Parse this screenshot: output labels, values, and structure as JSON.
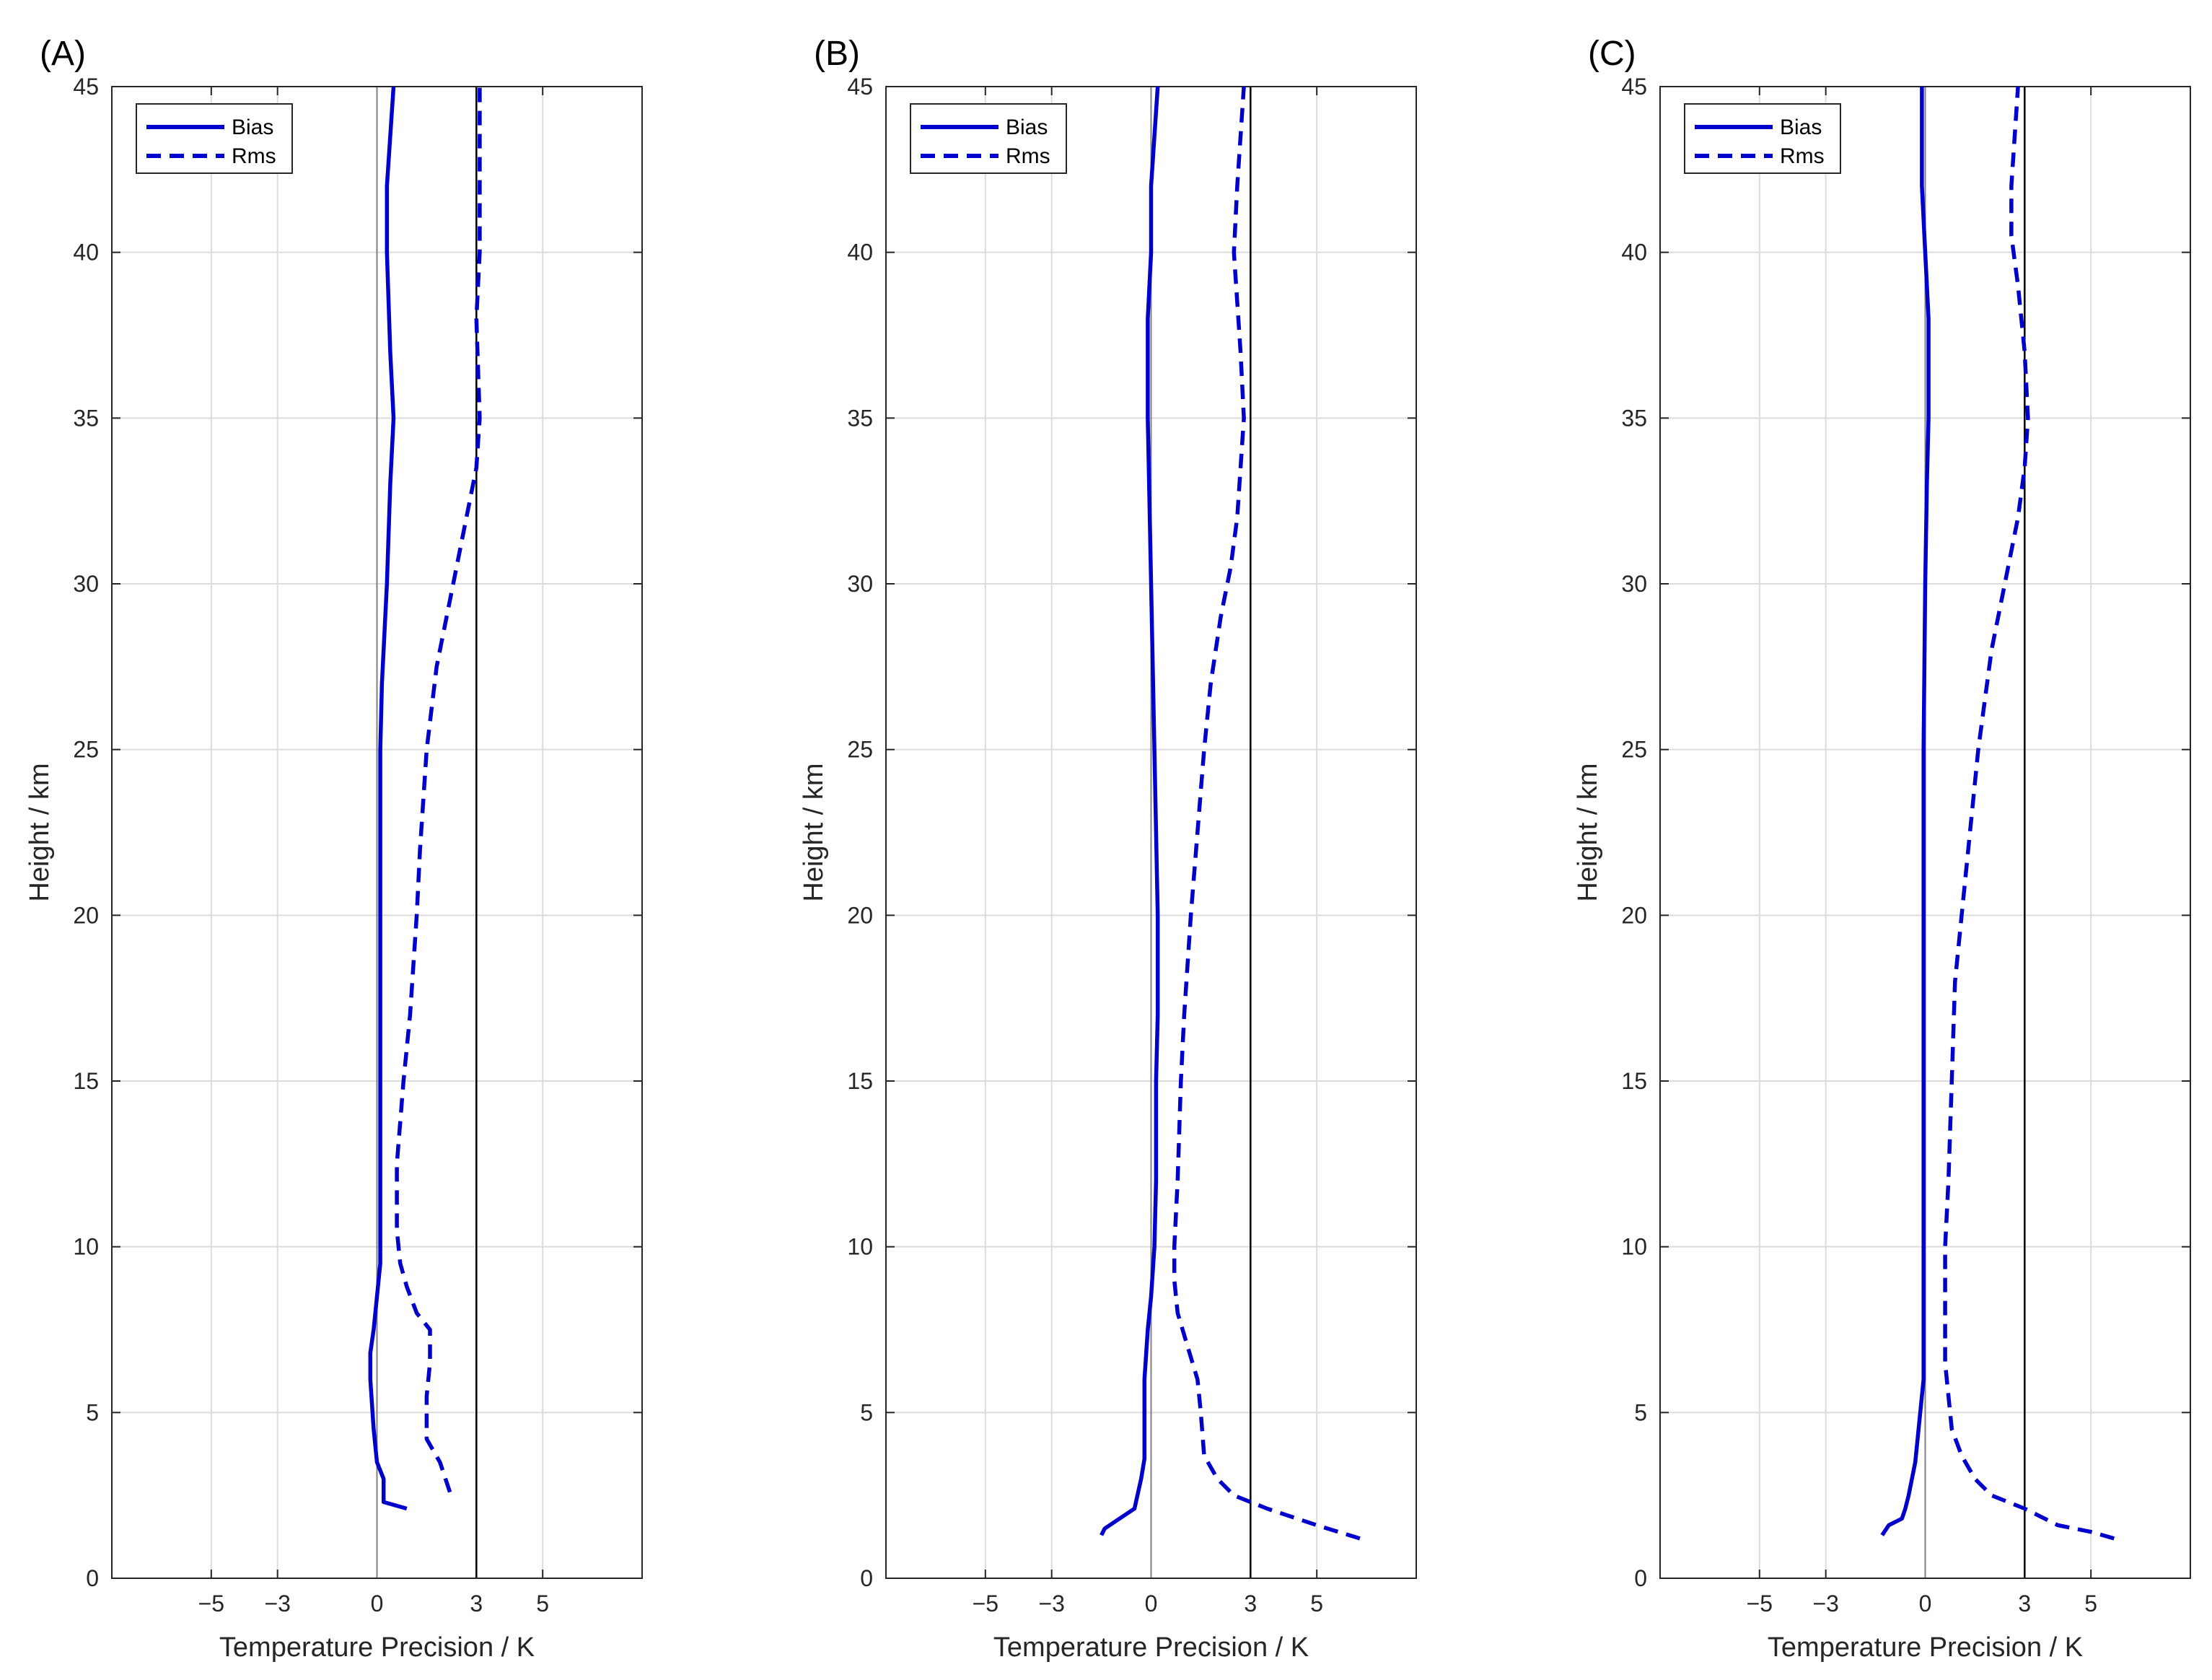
{
  "chart_data": [
    {
      "type": "line",
      "panel_label": "(A)",
      "xlabel": "Temperature Precision / K",
      "ylabel": "Height / km",
      "xlim": [
        -8,
        8
      ],
      "ylim": [
        0,
        45
      ],
      "xticks": [
        -5,
        -3,
        0,
        3,
        5
      ],
      "yticks": [
        0,
        5,
        10,
        15,
        20,
        25,
        30,
        35,
        40,
        45
      ],
      "grid": true,
      "reference_lines_x": [
        0,
        3
      ],
      "legend": {
        "location": "top-left",
        "entries": [
          "Bias",
          "Rms"
        ]
      },
      "series": [
        {
          "name": "Bias",
          "style": "solid",
          "color": "#0000cd",
          "points": [
            [
              0.9,
              2.1
            ],
            [
              0.2,
              2.3
            ],
            [
              0.2,
              3.0
            ],
            [
              0.0,
              3.5
            ],
            [
              -0.1,
              4.5
            ],
            [
              -0.2,
              6.0
            ],
            [
              -0.2,
              6.8
            ],
            [
              -0.1,
              7.5
            ],
            [
              0.0,
              8.5
            ],
            [
              0.1,
              9.5
            ],
            [
              0.1,
              12.0
            ],
            [
              0.1,
              16.0
            ],
            [
              0.1,
              20.0
            ],
            [
              0.1,
              25.0
            ],
            [
              0.15,
              27.0
            ],
            [
              0.3,
              30.0
            ],
            [
              0.4,
              33.0
            ],
            [
              0.5,
              35.0
            ],
            [
              0.4,
              37.0
            ],
            [
              0.3,
              40.0
            ],
            [
              0.3,
              42.0
            ],
            [
              0.5,
              45.0
            ]
          ]
        },
        {
          "name": "Rms",
          "style": "dashed",
          "color": "#0000cd",
          "points": [
            [
              2.2,
              2.6
            ],
            [
              1.9,
              3.5
            ],
            [
              1.5,
              4.2
            ],
            [
              1.5,
              5.5
            ],
            [
              1.6,
              6.5
            ],
            [
              1.6,
              7.5
            ],
            [
              1.2,
              8.0
            ],
            [
              0.9,
              8.8
            ],
            [
              0.7,
              9.5
            ],
            [
              0.6,
              10.5
            ],
            [
              0.6,
              12.5
            ],
            [
              0.8,
              15.0
            ],
            [
              1.0,
              17.0
            ],
            [
              1.2,
              20.0
            ],
            [
              1.3,
              22.0
            ],
            [
              1.5,
              25.0
            ],
            [
              1.8,
              27.5
            ],
            [
              2.3,
              30.0
            ],
            [
              2.7,
              32.0
            ],
            [
              3.0,
              33.5
            ],
            [
              3.1,
              35.0
            ],
            [
              3.0,
              38.0
            ],
            [
              3.1,
              40.0
            ],
            [
              3.1,
              42.0
            ],
            [
              3.1,
              45.0
            ]
          ]
        }
      ]
    },
    {
      "type": "line",
      "panel_label": "(B)",
      "xlabel": "Temperature Precision / K",
      "ylabel": "Height / km",
      "xlim": [
        -8,
        8
      ],
      "ylim": [
        0,
        45
      ],
      "xticks": [
        -5,
        -3,
        0,
        3,
        5
      ],
      "yticks": [
        0,
        5,
        10,
        15,
        20,
        25,
        30,
        35,
        40,
        45
      ],
      "grid": true,
      "reference_lines_x": [
        0,
        3
      ],
      "legend": {
        "location": "top-left",
        "entries": [
          "Bias",
          "Rms"
        ]
      },
      "series": [
        {
          "name": "Bias",
          "style": "solid",
          "color": "#0000cd",
          "points": [
            [
              -1.5,
              1.3
            ],
            [
              -1.4,
              1.5
            ],
            [
              -0.5,
              2.1
            ],
            [
              -0.3,
              3.0
            ],
            [
              -0.2,
              3.6
            ],
            [
              -0.2,
              5.0
            ],
            [
              -0.2,
              6.0
            ],
            [
              -0.1,
              7.5
            ],
            [
              0.0,
              8.5
            ],
            [
              0.1,
              10.0
            ],
            [
              0.15,
              12.0
            ],
            [
              0.15,
              15.0
            ],
            [
              0.2,
              17.0
            ],
            [
              0.2,
              20.0
            ],
            [
              0.1,
              25.0
            ],
            [
              0.0,
              30.0
            ],
            [
              -0.1,
              35.0
            ],
            [
              -0.1,
              38.0
            ],
            [
              0.0,
              40.0
            ],
            [
              0.0,
              42.0
            ],
            [
              0.1,
              43.5
            ],
            [
              0.2,
              45.0
            ]
          ]
        },
        {
          "name": "Rms",
          "style": "dashed",
          "color": "#0000cd",
          "points": [
            [
              6.3,
              1.2
            ],
            [
              5.0,
              1.6
            ],
            [
              3.5,
              2.1
            ],
            [
              2.5,
              2.5
            ],
            [
              2.0,
              3.0
            ],
            [
              1.6,
              3.7
            ],
            [
              1.5,
              5.0
            ],
            [
              1.4,
              6.0
            ],
            [
              1.1,
              7.0
            ],
            [
              0.8,
              8.0
            ],
            [
              0.7,
              9.0
            ],
            [
              0.7,
              10.0
            ],
            [
              0.8,
              12.0
            ],
            [
              0.9,
              15.0
            ],
            [
              1.0,
              17.0
            ],
            [
              1.2,
              20.0
            ],
            [
              1.4,
              22.5
            ],
            [
              1.6,
              25.0
            ],
            [
              1.8,
              27.0
            ],
            [
              2.1,
              29.0
            ],
            [
              2.4,
              30.5
            ],
            [
              2.6,
              32.0
            ],
            [
              2.7,
              33.5
            ],
            [
              2.8,
              35.0
            ],
            [
              2.7,
              37.0
            ],
            [
              2.5,
              40.0
            ],
            [
              2.6,
              42.0
            ],
            [
              2.7,
              43.5
            ],
            [
              2.8,
              45.0
            ]
          ]
        }
      ]
    },
    {
      "type": "line",
      "panel_label": "(C)",
      "xlabel": "Temperature Precision / K",
      "ylabel": "Height / km",
      "xlim": [
        -8,
        8
      ],
      "ylim": [
        0,
        45
      ],
      "xticks": [
        -5,
        -3,
        0,
        3,
        5
      ],
      "yticks": [
        0,
        5,
        10,
        15,
        20,
        25,
        30,
        35,
        40,
        45
      ],
      "grid": true,
      "reference_lines_x": [
        0,
        3
      ],
      "legend": {
        "location": "top-left",
        "entries": [
          "Bias",
          "Rms"
        ]
      },
      "series": [
        {
          "name": "Bias",
          "style": "solid",
          "color": "#0000cd",
          "points": [
            [
              -1.3,
              1.3
            ],
            [
              -1.1,
              1.6
            ],
            [
              -0.7,
              1.8
            ],
            [
              -0.6,
              2.1
            ],
            [
              -0.5,
              2.5
            ],
            [
              -0.4,
              3.0
            ],
            [
              -0.3,
              3.5
            ],
            [
              -0.2,
              4.5
            ],
            [
              -0.1,
              5.5
            ],
            [
              -0.05,
              6.0
            ],
            [
              -0.05,
              8.0
            ],
            [
              -0.05,
              10.0
            ],
            [
              -0.05,
              15.0
            ],
            [
              -0.05,
              20.0
            ],
            [
              -0.05,
              25.0
            ],
            [
              0.0,
              30.0
            ],
            [
              0.05,
              33.0
            ],
            [
              0.1,
              35.0
            ],
            [
              0.1,
              38.0
            ],
            [
              0.0,
              40.0
            ],
            [
              -0.1,
              42.0
            ],
            [
              -0.1,
              45.0
            ]
          ]
        },
        {
          "name": "Rms",
          "style": "dashed",
          "color": "#0000cd",
          "points": [
            [
              5.7,
              1.2
            ],
            [
              5.0,
              1.4
            ],
            [
              4.0,
              1.6
            ],
            [
              3.0,
              2.1
            ],
            [
              2.0,
              2.5
            ],
            [
              1.5,
              3.0
            ],
            [
              1.1,
              3.7
            ],
            [
              0.8,
              4.5
            ],
            [
              0.7,
              5.5
            ],
            [
              0.6,
              6.5
            ],
            [
              0.6,
              8.0
            ],
            [
              0.6,
              10.0
            ],
            [
              0.7,
              12.0
            ],
            [
              0.8,
              15.0
            ],
            [
              0.9,
              18.0
            ],
            [
              1.1,
              20.0
            ],
            [
              1.3,
              22.0
            ],
            [
              1.6,
              25.0
            ],
            [
              2.0,
              28.0
            ],
            [
              2.4,
              30.0
            ],
            [
              2.8,
              32.0
            ],
            [
              3.0,
              33.5
            ],
            [
              3.1,
              35.0
            ],
            [
              3.0,
              37.0
            ],
            [
              2.8,
              39.0
            ],
            [
              2.6,
              40.5
            ],
            [
              2.6,
              42.0
            ],
            [
              2.7,
              43.5
            ],
            [
              2.8,
              45.0
            ]
          ]
        }
      ]
    }
  ]
}
